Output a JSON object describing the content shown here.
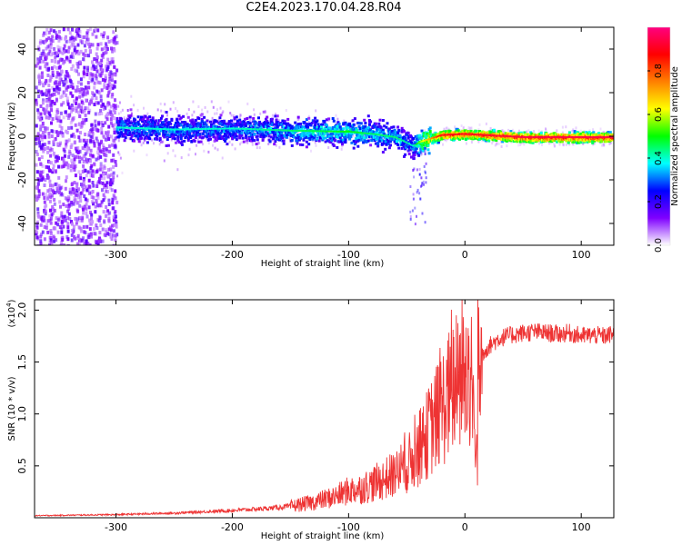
{
  "figure_title": "C2E4.2023.170.04.28.R04",
  "chart_data": [
    {
      "type": "heatmap",
      "xlabel": "Height of straight line (km)",
      "ylabel": "Frequency (Hz)",
      "xlim": [
        -370,
        128
      ],
      "ylim": [
        -50,
        50
      ],
      "x_ticks": [
        -300,
        -200,
        -100,
        0,
        100
      ],
      "y_ticks": [
        -40,
        -20,
        0,
        20,
        40
      ],
      "grid": false,
      "colorbar": {
        "label": "Normalized spectral amplitude",
        "range": [
          0,
          1
        ],
        "ticks": [
          0.0,
          0.2,
          0.4,
          0.6,
          0.8
        ],
        "colors": [
          "#ffffff",
          "#7f00ff",
          "#0000ff",
          "#00ffff",
          "#00ff00",
          "#ffff00",
          "#ff8000",
          "#ff0000",
          "#ff0080"
        ]
      },
      "ridge": {
        "x": [
          -300,
          -250,
          -200,
          -150,
          -100,
          -80,
          -60,
          -45,
          -38,
          -20,
          0,
          50,
          128
        ],
        "y": [
          4.5,
          3.5,
          4,
          3,
          2.5,
          1.5,
          0,
          -4,
          -2,
          1,
          1.5,
          0,
          0
        ],
        "amplitude": [
          0.3,
          0.3,
          0.3,
          0.35,
          0.4,
          0.35,
          0.35,
          0.3,
          0.5,
          0.8,
          0.8,
          0.85,
          0.85
        ]
      },
      "noise_region_x": [
        -370,
        -300
      ]
    },
    {
      "type": "line",
      "xlabel": "Height of straight line (km)",
      "ylabel": "SNR (10 * v/v)",
      "y_multiplier": "(x10^4)",
      "y_multiplier_base": "(x10",
      "y_multiplier_exp": "4",
      "y_multiplier_tail": ")",
      "xlim": [
        -370,
        128
      ],
      "ylim": [
        0,
        21000
      ],
      "x_ticks": [
        -300,
        -200,
        -100,
        0,
        100
      ],
      "y_ticks": [
        5000,
        10000,
        15000,
        20000
      ],
      "y_tick_labels": [
        "0.5",
        "1.0",
        "1.5",
        "2.0"
      ],
      "grid": false,
      "series": [
        {
          "color": "#ee3333",
          "x": [
            -370,
            -300,
            -250,
            -200,
            -170,
            -150,
            -130,
            -110,
            -100,
            -90,
            -80,
            -70,
            -60,
            -50,
            -40,
            -30,
            -20,
            -10,
            0,
            5,
            10,
            15,
            20,
            30,
            40,
            50,
            60,
            70,
            80,
            90,
            100,
            110,
            120,
            128
          ],
          "y": [
            200,
            300,
            450,
            700,
            900,
            1100,
            1500,
            2100,
            2600,
            2800,
            3200,
            3700,
            4200,
            5000,
            6500,
            8500,
            10500,
            12500,
            13500,
            14000,
            14500,
            15800,
            16500,
            17300,
            17600,
            17800,
            17900,
            17800,
            17700,
            17800,
            17500,
            17600,
            17500,
            17700
          ]
        }
      ]
    }
  ]
}
